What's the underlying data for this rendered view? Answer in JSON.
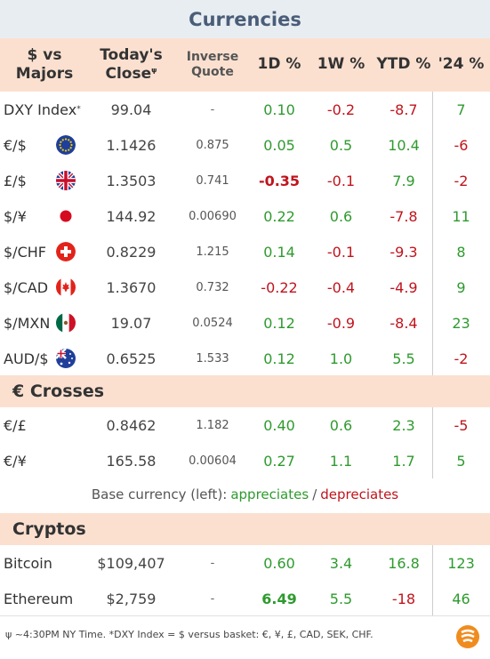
{
  "title": "Currencies",
  "headers": {
    "pair": [
      "$ vs",
      "Majors"
    ],
    "close": [
      "Today's",
      "Close"
    ],
    "close_mark": "ψ",
    "inverse": [
      "Inverse",
      "Quote"
    ],
    "d1": "1D %",
    "w1": "1W %",
    "ytd": "YTD %",
    "y24": "'24 %"
  },
  "majors": [
    {
      "label": "DXY Index",
      "mark": "*",
      "flag": "",
      "close": "99.04",
      "inverse": "-",
      "d1": "0.10",
      "w1": "-0.2",
      "ytd": "-8.7",
      "y24": "7"
    },
    {
      "label": "€/$",
      "flag": "eu-flag-icon",
      "close": "1.1426",
      "inverse": "0.875",
      "d1": "0.05",
      "w1": "0.5",
      "ytd": "10.4",
      "y24": "-6"
    },
    {
      "label": "£/$",
      "flag": "uk-flag-icon",
      "close": "1.3503",
      "inverse": "0.741",
      "d1": "-0.35",
      "w1": "-0.1",
      "ytd": "7.9",
      "y24": "-2"
    },
    {
      "label": "$/¥",
      "flag": "japan-flag-icon",
      "close": "144.92",
      "inverse": "0.00690",
      "d1": "0.22",
      "w1": "0.6",
      "ytd": "-7.8",
      "y24": "11"
    },
    {
      "label": "$/CHF",
      "flag": "swiss-flag-icon",
      "close": "0.8229",
      "inverse": "1.215",
      "d1": "0.14",
      "w1": "-0.1",
      "ytd": "-9.3",
      "y24": "8"
    },
    {
      "label": "$/CAD",
      "flag": "canada-flag-icon",
      "close": "1.3670",
      "inverse": "0.732",
      "d1": "-0.22",
      "w1": "-0.4",
      "ytd": "-4.9",
      "y24": "9"
    },
    {
      "label": "$/MXN",
      "flag": "mexico-flag-icon",
      "close": "19.07",
      "inverse": "0.0524",
      "d1": "0.12",
      "w1": "-0.9",
      "ytd": "-8.4",
      "y24": "23"
    },
    {
      "label": "AUD/$",
      "flag": "australia-flag-icon",
      "close": "0.6525",
      "inverse": "1.533",
      "d1": "0.12",
      "w1": "1.0",
      "ytd": "5.5",
      "y24": "-2"
    }
  ],
  "crosses_title": "€ Crosses",
  "crosses": [
    {
      "label": "€/£",
      "close": "0.8462",
      "inverse": "1.182",
      "d1": "0.40",
      "w1": "0.6",
      "ytd": "2.3",
      "y24": "-5"
    },
    {
      "label": "€/¥",
      "close": "165.58",
      "inverse": "0.00604",
      "d1": "0.27",
      "w1": "1.1",
      "ytd": "1.7",
      "y24": "5"
    }
  ],
  "legend": {
    "prefix": "Base currency (left):",
    "up": "appreciates",
    "sep": "/",
    "down": "depreciates"
  },
  "cryptos_title": "Cryptos",
  "cryptos": [
    {
      "label": "Bitcoin",
      "close": "$109,407",
      "inverse": "-",
      "d1": "0.60",
      "w1": "3.4",
      "ytd": "16.8",
      "y24": "123"
    },
    {
      "label": "Ethereum",
      "close": "$2,759",
      "inverse": "-",
      "d1": "6.49",
      "w1": "5.5",
      "ytd": "-18",
      "y24": "46"
    }
  ],
  "footnote": "ψ ~4:30PM NY Time.   *DXY Index = $ versus basket: €, ¥, £, CAD, SEK, CHF.",
  "colors": {
    "positive": "#2e9a2e",
    "negative": "#c0141c",
    "header_bg": "#fbe0d0",
    "title_bg": "#e8edf2",
    "brand": "#f08c1e"
  }
}
